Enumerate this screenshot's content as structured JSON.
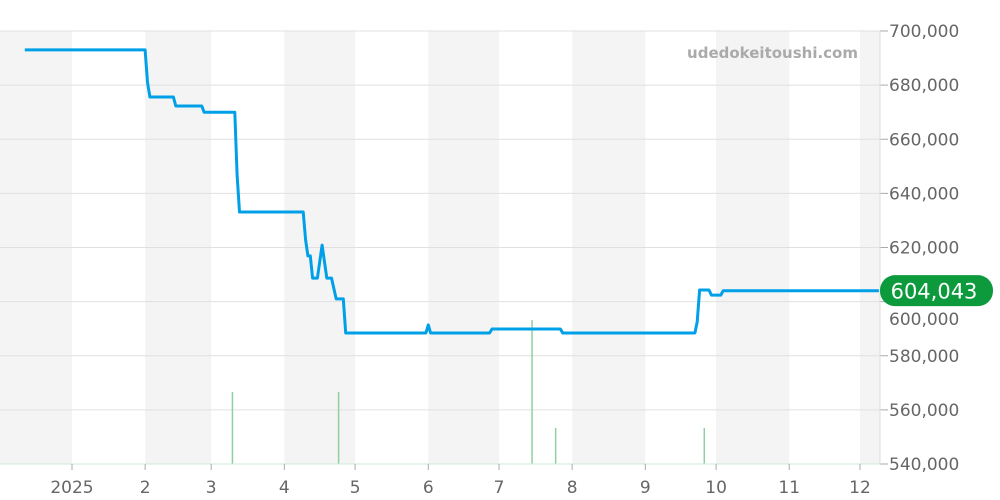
{
  "watermark": "udedokeitoushi.com",
  "chart_data": {
    "type": "line",
    "title": "",
    "xlabel": "",
    "ylabel": "",
    "ylim": [
      540000,
      700000
    ],
    "y_ticks": [
      540000,
      560000,
      580000,
      600000,
      620000,
      640000,
      660000,
      680000,
      700000
    ],
    "y_tick_labels": [
      "540,000",
      "560,000",
      "580,000",
      "600,000",
      "620,000",
      "640,000",
      "660,000",
      "680,000",
      "700,000"
    ],
    "x_range": [
      "2024-12-01",
      "2025-12-09"
    ],
    "x_ticks": [
      "2025-01-01",
      "2025-02-01",
      "2025-03-01",
      "2025-04-01",
      "2025-05-01",
      "2025-06-01",
      "2025-07-01",
      "2025-08-01",
      "2025-09-01",
      "2025-10-01",
      "2025-11-01",
      "2025-12-01"
    ],
    "x_tick_labels": [
      "2025",
      "2",
      "3",
      "4",
      "5",
      "6",
      "7",
      "8",
      "9",
      "10",
      "11",
      "12"
    ],
    "grid": true,
    "alternating_month_shading": true,
    "line_color": "#00a0e9",
    "volume_color": "#8fd19e",
    "current_value_label": "604,043",
    "current_value_color": "#0c9a3c",
    "series": [
      {
        "points": [
          [
            "2024-12-12",
            693000
          ],
          [
            "2025-02-01",
            693000
          ],
          [
            "2025-02-02",
            681000
          ],
          [
            "2025-02-03",
            675600
          ],
          [
            "2025-02-13",
            675600
          ],
          [
            "2025-02-14",
            672300
          ],
          [
            "2025-02-25",
            672300
          ],
          [
            "2025-02-26",
            670000
          ],
          [
            "2025-03-11",
            670000
          ],
          [
            "2025-03-12",
            646800
          ],
          [
            "2025-03-13",
            633100
          ],
          [
            "2025-04-09",
            633100
          ],
          [
            "2025-04-10",
            622800
          ],
          [
            "2025-04-11",
            616900
          ],
          [
            "2025-04-12",
            616900
          ],
          [
            "2025-04-13",
            608700
          ],
          [
            "2025-04-15",
            608700
          ],
          [
            "2025-04-17",
            620900
          ],
          [
            "2025-04-19",
            608700
          ],
          [
            "2025-04-21",
            608700
          ],
          [
            "2025-04-23",
            601000
          ],
          [
            "2025-04-26",
            601000
          ],
          [
            "2025-04-27",
            588400
          ],
          [
            "2025-05-31",
            588400
          ],
          [
            "2025-06-01",
            591400
          ],
          [
            "2025-06-02",
            588400
          ],
          [
            "2025-06-27",
            588400
          ],
          [
            "2025-06-28",
            589900
          ],
          [
            "2025-07-27",
            589900
          ],
          [
            "2025-07-28",
            588400
          ],
          [
            "2025-09-22",
            588400
          ],
          [
            "2025-09-23",
            592500
          ],
          [
            "2025-09-24",
            604300
          ],
          [
            "2025-09-28",
            604300
          ],
          [
            "2025-09-29",
            602400
          ],
          [
            "2025-10-03",
            602400
          ],
          [
            "2025-10-04",
            604043
          ],
          [
            "2025-12-09",
            604043
          ]
        ]
      }
    ],
    "volume": [
      [
        "2025-03-10",
        2
      ],
      [
        "2025-04-24",
        2
      ],
      [
        "2025-07-15",
        4
      ],
      [
        "2025-07-25",
        1
      ],
      [
        "2025-09-26",
        1
      ]
    ]
  }
}
